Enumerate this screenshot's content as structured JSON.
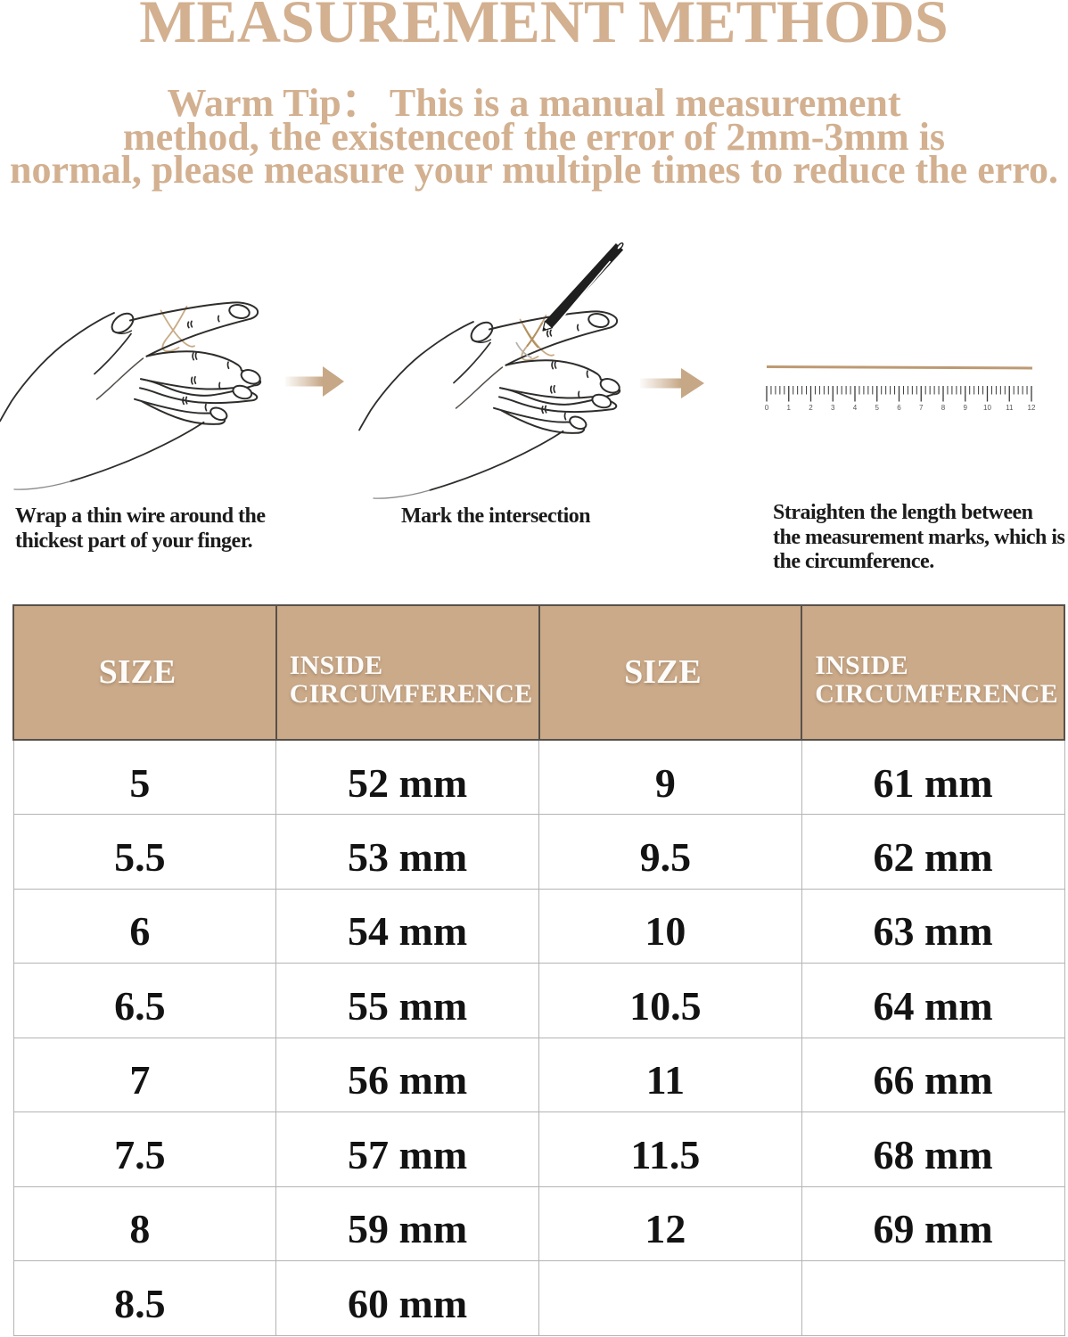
{
  "title": {
    "text": "MEASUREMENT METHODS"
  },
  "warm_tip": {
    "lines": [
      "Warm Tip： This is a manual measurement",
      "method, the existenceof the error of 2mm-3mm is",
      "normal, please measure your multiple times to reduce the erro."
    ]
  },
  "steps": [
    {
      "caption_lines": [
        "Wrap a thin wire around the",
        "thickest part of your finger."
      ]
    },
    {
      "caption_lines": [
        "Mark the intersection"
      ]
    },
    {
      "caption_lines": [
        "Straighten the length between",
        "the measurement marks, which is",
        "the circumference."
      ]
    }
  ],
  "ruler": {
    "numbers": [
      "0",
      "1",
      "2",
      "3",
      "4",
      "5",
      "6",
      "7",
      "8",
      "9",
      "10",
      "11",
      "12"
    ]
  },
  "size_chart": {
    "headers": [
      "SIZE",
      "INSIDE CIRCUMFERENCE",
      "SIZE",
      "INSIDE CIRCUMFERENCE"
    ],
    "rows": [
      [
        "5",
        "52 mm",
        "9",
        "61 mm"
      ],
      [
        "5.5",
        "53 mm",
        "9.5",
        "62 mm"
      ],
      [
        "6",
        "54 mm",
        "10",
        "63 mm"
      ],
      [
        "6.5",
        "55 mm",
        "10.5",
        "64 mm"
      ],
      [
        "7",
        "56 mm",
        "11",
        "66 mm"
      ],
      [
        "7.5",
        "57 mm",
        "11.5",
        "68 mm"
      ],
      [
        "8",
        "59 mm",
        "12",
        "69 mm"
      ],
      [
        "8.5",
        "60 mm",
        "",
        ""
      ]
    ]
  },
  "colors": {
    "bg": "#ffffff",
    "tan-text": "#d2b090",
    "header-bg": "#cbaa89",
    "wire": "#c9ab83",
    "ruler-line": "#bd9a73",
    "arrow": "#c6a786",
    "hand-line": "#2e2d2b"
  }
}
